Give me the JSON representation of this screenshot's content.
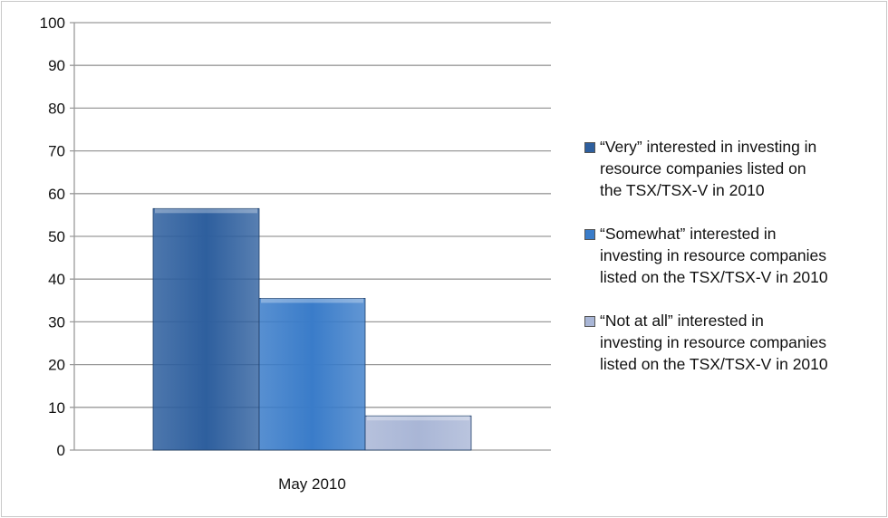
{
  "chart_data": {
    "type": "bar",
    "categories": [
      "May 2010"
    ],
    "series": [
      {
        "name": "“Very” interested in investing in resource companies listed on the TSX/TSX-V in 2010",
        "values": [
          56.5
        ],
        "color": "#2e5f9e"
      },
      {
        "name": "“Somewhat” interested in investing in resource companies listed on the TSX/TSX-V in 2010",
        "values": [
          35.5
        ],
        "color": "#3a7cc9"
      },
      {
        "name": "“Not at all” interested in investing in resource companies listed on the TSX/TSX-V in 2010",
        "values": [
          8
        ],
        "color": "#a9b6d6"
      }
    ],
    "ylim": [
      0,
      100
    ],
    "yticks": [
      "0",
      "10",
      "20",
      "30",
      "40",
      "50",
      "60",
      "70",
      "80",
      "90",
      "100"
    ],
    "grid": true,
    "legend_placement": "right",
    "title": "",
    "xlabel": "",
    "ylabel": ""
  }
}
